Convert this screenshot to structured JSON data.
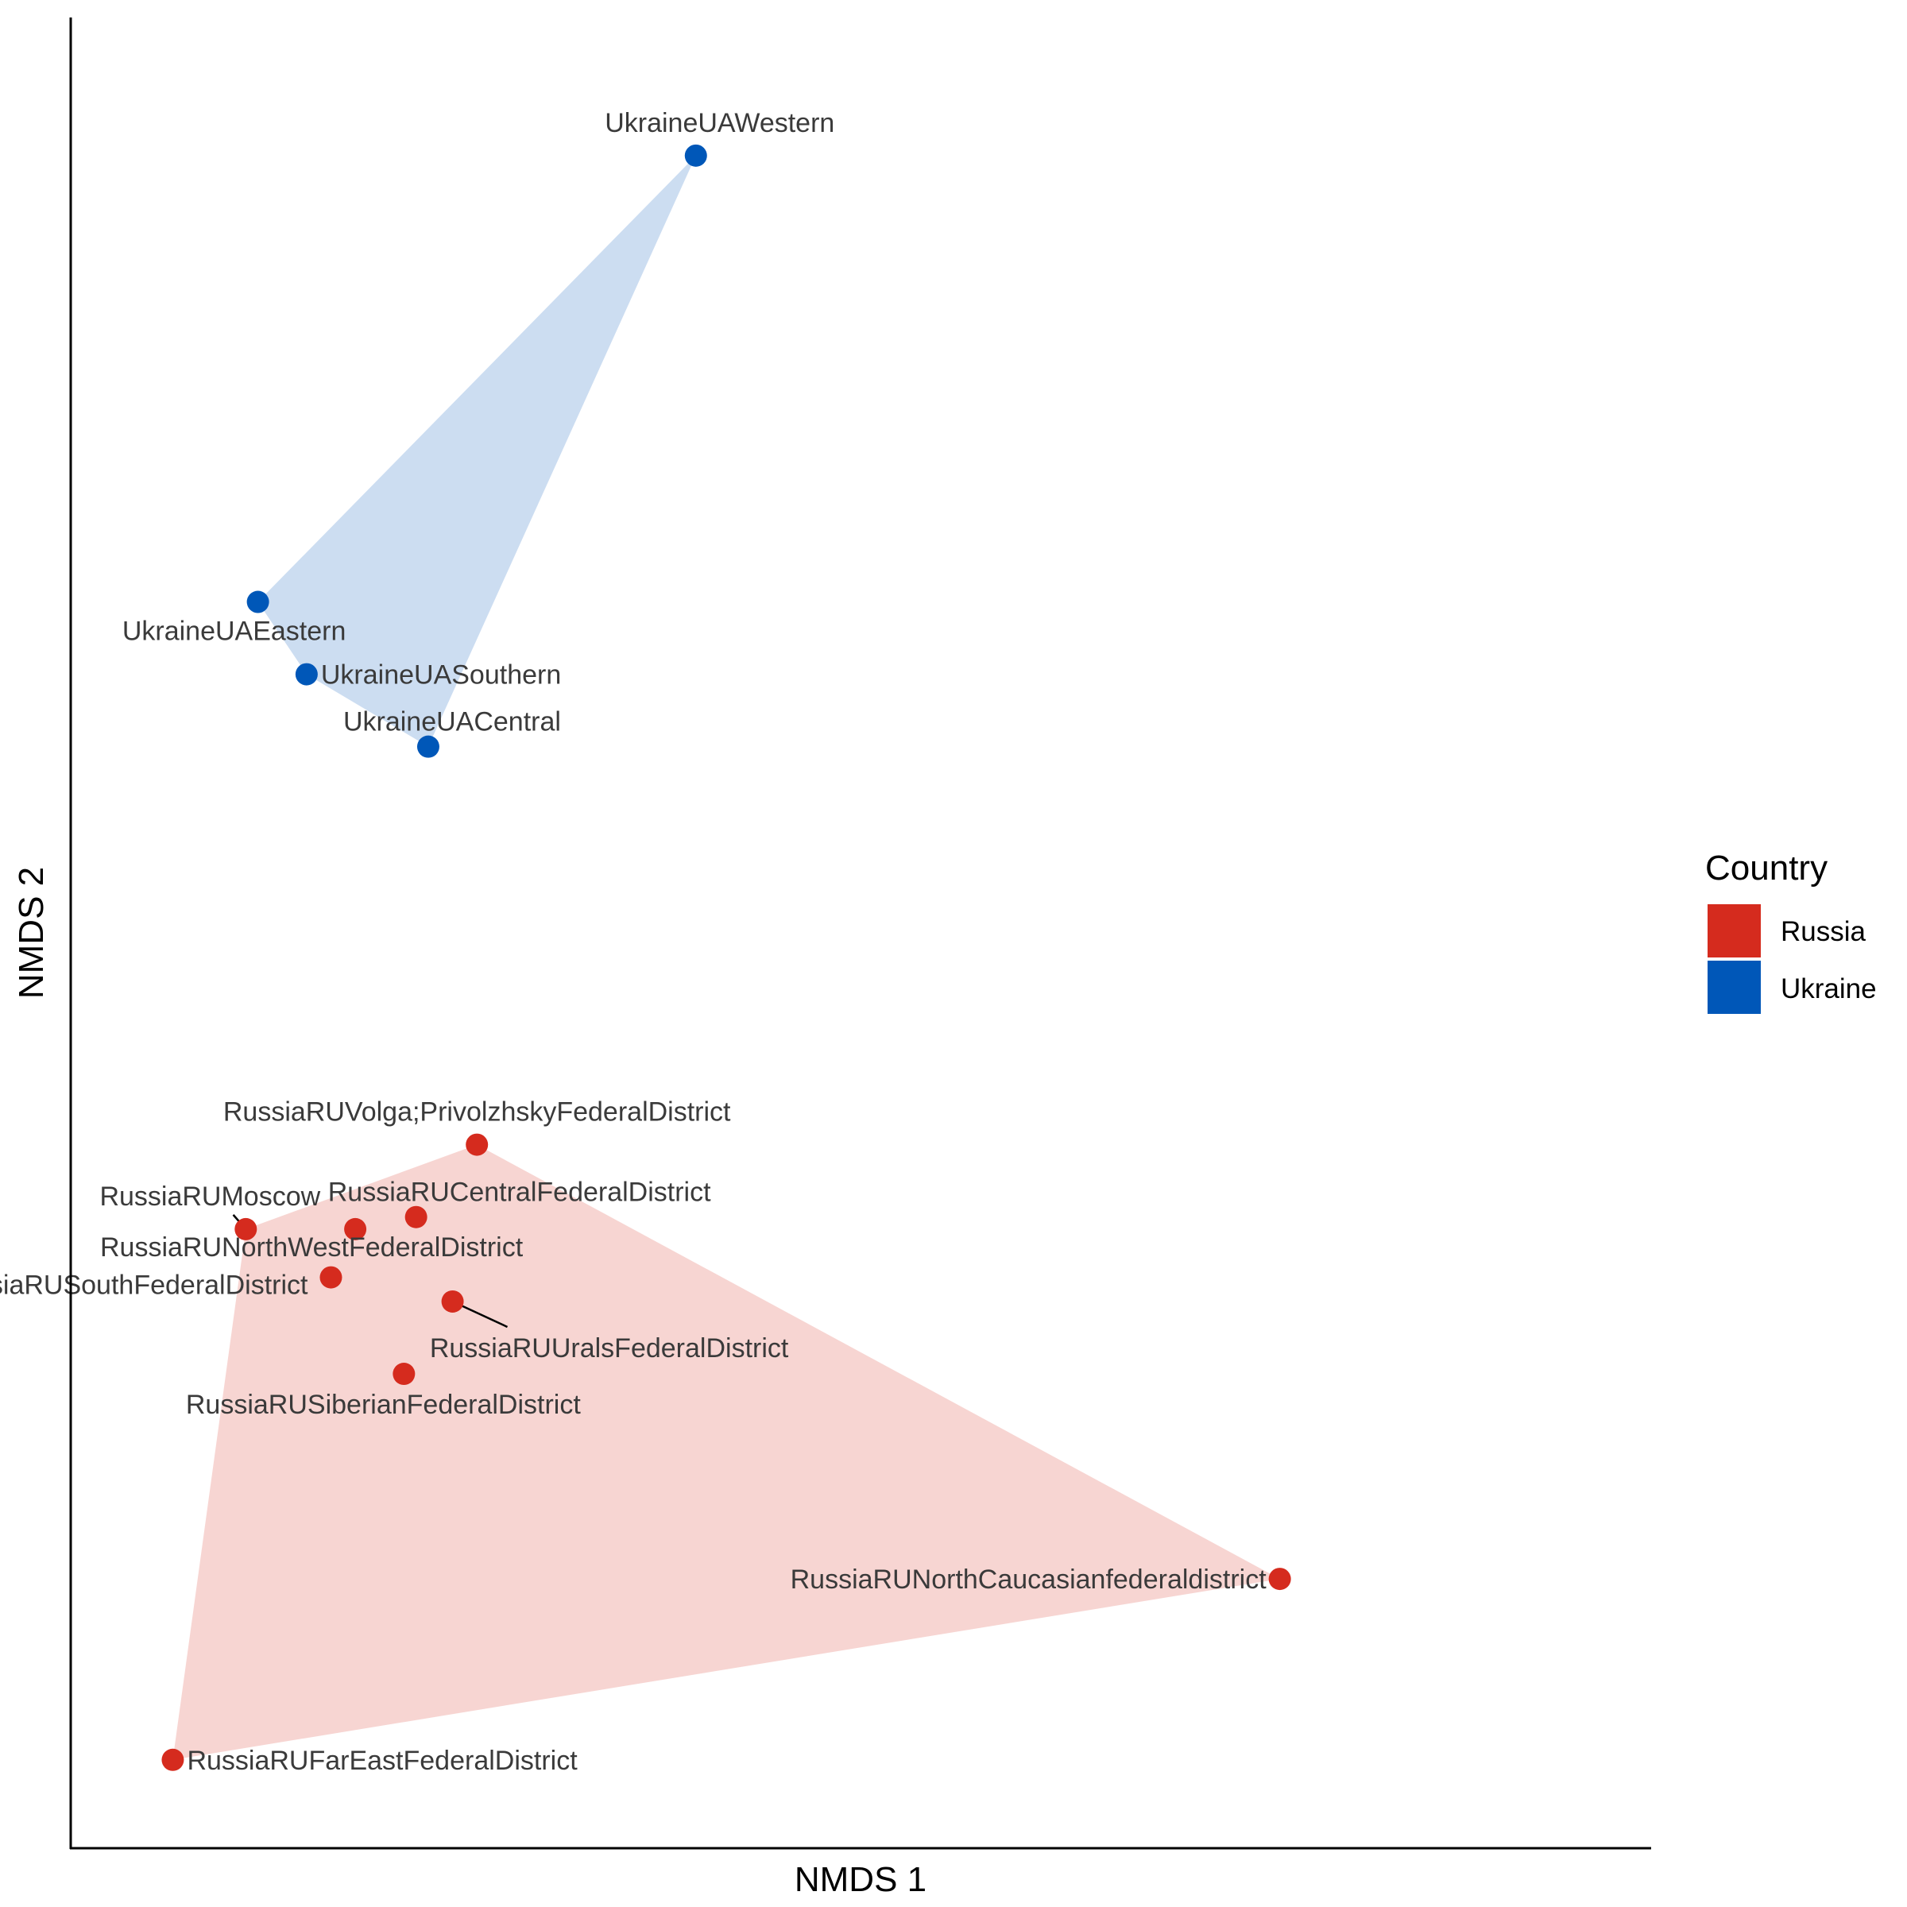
{
  "chart_data": {
    "type": "scatter",
    "xlabel": "NMDS 1",
    "ylabel": "NMDS 2",
    "grid": false,
    "hulls": true,
    "legend": {
      "title": "Country",
      "position": "right",
      "items": [
        {
          "name": "Russia",
          "color": "#d52b1e"
        },
        {
          "name": "Ukraine",
          "color": "#0057b8"
        }
      ]
    },
    "series": [
      {
        "name": "Russia",
        "color": "#d52b1e",
        "points": [
          {
            "label": "RussiaRUVolga;PrivolzhskyFederalDistrict",
            "x": 0.2,
            "y": 0.41
          },
          {
            "label": "RussiaRUCentralFederalDistrict",
            "x": 0.15,
            "y": 0.35
          },
          {
            "label": "RussiaRUMoscow",
            "x": 0.01,
            "y": 0.34
          },
          {
            "label": "RussiaRUNorthWestFederalDistrict",
            "x": 0.1,
            "y": 0.34
          },
          {
            "label": "RussiaRUSouthFederalDistrict",
            "x": 0.08,
            "y": 0.3
          },
          {
            "label": "RussiaRUUralsFederalDistrict",
            "x": 0.18,
            "y": 0.28
          },
          {
            "label": "RussiaRUSiberianFederalDistrict",
            "x": 0.14,
            "y": 0.22
          },
          {
            "label": "RussiaRUNorthCaucasianfederaldistrict",
            "x": 0.86,
            "y": 0.05
          },
          {
            "label": "RussiaRUFarEastFederalDistrict",
            "x": -0.05,
            "y": -0.1
          }
        ]
      },
      {
        "name": "Ukraine",
        "color": "#0057b8",
        "points": [
          {
            "label": "UkraineUAWestern",
            "x": 0.38,
            "y": 1.23
          },
          {
            "label": "UkraineUAEastern",
            "x": 0.02,
            "y": 0.86
          },
          {
            "label": "UkraineUASouthern",
            "x": 0.06,
            "y": 0.8
          },
          {
            "label": "UkraineUACentral",
            "x": 0.16,
            "y": 0.74
          }
        ]
      }
    ]
  }
}
